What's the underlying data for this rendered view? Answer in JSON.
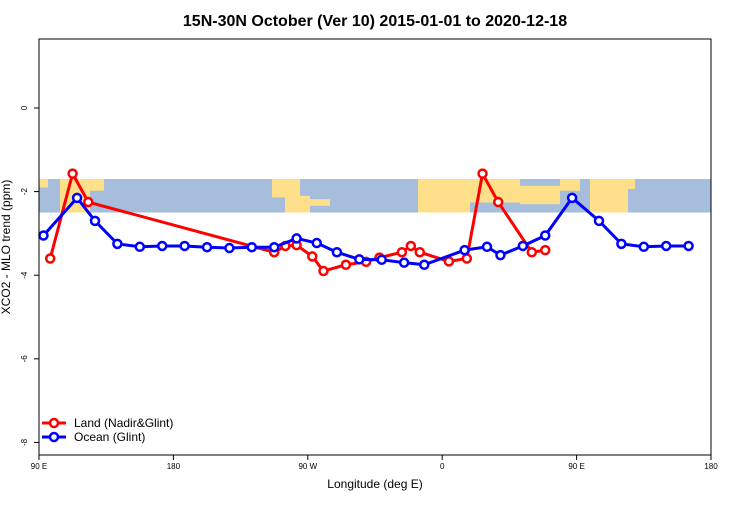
{
  "chart_data": {
    "type": "line",
    "title": "15N-30N October (Ver 10)   2015-01-01 to 2020-12-18",
    "xlabel": "Longitude (deg E)",
    "ylabel": "XCO2 - MLO trend (ppm)",
    "xlim": [
      -90,
      210
    ],
    "ylim": [
      -8.3,
      1.65
    ],
    "xticks": [
      -90,
      -30,
      30,
      90,
      150,
      210
    ],
    "xtick_labels": [
      "90 E",
      "180",
      "90 W",
      "0",
      "90 E",
      "180"
    ],
    "yticks": [
      0,
      -2,
      -4,
      -6,
      -8
    ],
    "ytick_labels": [
      "0",
      "-2",
      "-4",
      "-6",
      "-8"
    ],
    "grid": false,
    "legend_position": "bottom-left",
    "map_band": {
      "description_colors": [
        "#a6bddb",
        "#fee08b"
      ],
      "y_range": [
        -2.5,
        -1.7
      ]
    },
    "series": [
      {
        "name": "Land (Nadir&Glint)",
        "color": "#ff0000",
        "x": [
          -85,
          -75,
          -68,
          15,
          20,
          25,
          32,
          37,
          47,
          56,
          62,
          72,
          76,
          80,
          93,
          101,
          108,
          115,
          130,
          136
        ],
        "y": [
          -3.6,
          -1.57,
          -2.25,
          -3.45,
          -3.3,
          -3.28,
          -3.55,
          -3.9,
          -3.75,
          -3.68,
          -3.58,
          -3.45,
          -3.3,
          -3.45,
          -3.67,
          -3.6,
          -1.57,
          -2.25,
          -3.45,
          -3.4
        ]
      },
      {
        "name": "Ocean (Glint)",
        "color": "#0000ff",
        "x": [
          -88,
          -73,
          -65,
          -55,
          -45,
          -35,
          -25,
          -15,
          -5,
          5,
          15,
          25,
          34,
          43,
          53,
          63,
          73,
          82,
          100,
          110,
          116,
          126,
          136,
          148,
          160,
          170,
          180,
          190,
          200
        ],
        "y": [
          -3.05,
          -2.15,
          -2.7,
          -3.25,
          -3.32,
          -3.3,
          -3.3,
          -3.33,
          -3.35,
          -3.33,
          -3.33,
          -3.12,
          -3.23,
          -3.45,
          -3.62,
          -3.63,
          -3.7,
          -3.75,
          -3.4,
          -3.32,
          -3.52,
          -3.3,
          -3.05,
          -2.15,
          -2.7,
          -3.25,
          -3.32,
          -3.3,
          -3.3
        ]
      }
    ]
  }
}
